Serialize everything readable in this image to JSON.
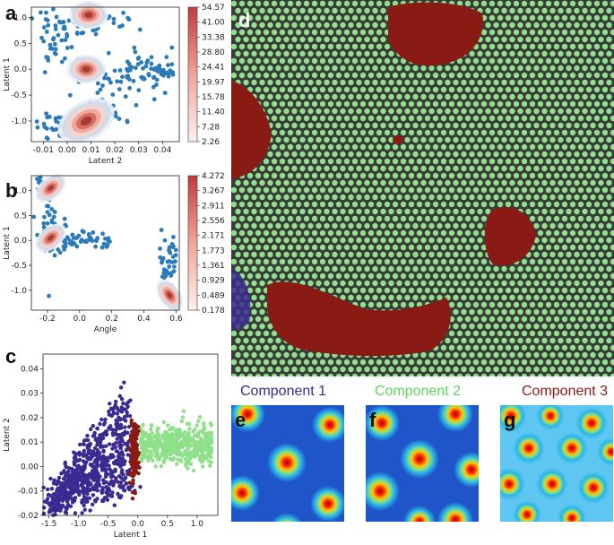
{
  "panels": {
    "a": {
      "label": "a",
      "xlabel": "Latent 2",
      "ylabel": "Latent 1",
      "xticks": [
        "-0.01",
        "0.00",
        "0.01",
        "0.02",
        "0.03",
        "0.04"
      ],
      "yticks": [
        "1.0",
        "0.5",
        "0.0",
        "-0.5",
        "-1.0"
      ],
      "colorbar_ticks": [
        "54.57",
        "41.00",
        "33.38",
        "28.80",
        "24.41",
        "19.97",
        "15.78",
        "11.40",
        "7.28",
        "2.26"
      ]
    },
    "b": {
      "label": "b",
      "xlabel": "Angle",
      "ylabel": "Latent 1",
      "xticks": [
        "-0.2",
        "0.0",
        "0.2",
        "0.4",
        "0.6"
      ],
      "yticks": [
        "1.0",
        "0.5",
        "0.0",
        "-0.5",
        "-1.0"
      ],
      "colorbar_ticks": [
        "4.272",
        "3.267",
        "2.911",
        "2.556",
        "2.171",
        "1.773",
        "1.361",
        "0.929",
        "0.489",
        "0.178"
      ]
    },
    "c": {
      "label": "c",
      "xlabel": "Latent 1",
      "ylabel": "Latent 2",
      "xticks": [
        "-1.5",
        "-1.0",
        "-0.5",
        "0.0",
        "0.5",
        "1.0"
      ],
      "yticks": [
        "0.04",
        "0.03",
        "0.02",
        "0.01",
        "0.00",
        "-0.01",
        "-0.02"
      ]
    },
    "d": {
      "label": "d"
    },
    "e": {
      "label": "e",
      "title": "Component 1"
    },
    "f": {
      "label": "f",
      "title": "Component 2"
    },
    "g": {
      "label": "g",
      "title": "Component 3"
    }
  },
  "colors": {
    "component1": "#3b2a8f",
    "component2": "#8fe08a",
    "component3": "#8a1a14",
    "scatter_blue": "#2b7bba",
    "kde_light": "#a9c6e0",
    "kde_red": "#b03030"
  },
  "chart_data": [
    {
      "type": "scatter",
      "panel": "a",
      "xlabel": "Latent 2",
      "ylabel": "Latent 1",
      "xlim": [
        -0.015,
        0.047
      ],
      "ylim": [
        -1.4,
        1.2
      ],
      "density_peaks": [
        {
          "x": 0.009,
          "y": 1.05
        },
        {
          "x": 0.008,
          "y": 0.0
        },
        {
          "x": 0.008,
          "y": -1.0
        }
      ],
      "colorbar_range": [
        2.26,
        54.57
      ]
    },
    {
      "type": "scatter",
      "panel": "b",
      "xlabel": "Angle",
      "ylabel": "Latent 1",
      "xlim": [
        -0.3,
        0.62
      ],
      "ylim": [
        -1.4,
        1.3
      ],
      "density_peaks": [
        {
          "x": -0.18,
          "y": 1.05
        },
        {
          "x": -0.18,
          "y": 0.05
        },
        {
          "x": 0.56,
          "y": -1.1
        }
      ],
      "colorbar_range": [
        0.178,
        4.272
      ]
    },
    {
      "type": "scatter",
      "panel": "c",
      "xlabel": "Latent 1",
      "ylabel": "Latent 2",
      "xlim": [
        -1.6,
        1.35
      ],
      "ylim": [
        -0.02,
        0.046
      ],
      "series": [
        {
          "name": "Component 1",
          "x_range": [
            -1.45,
            -0.1
          ],
          "y_range": [
            -0.015,
            0.045
          ]
        },
        {
          "name": "Component 3",
          "x_range": [
            -0.12,
            0.02
          ],
          "y_range": [
            -0.008,
            0.02
          ]
        },
        {
          "name": "Component 2",
          "x_range": [
            0.0,
            1.25
          ],
          "y_range": [
            0.0,
            0.02
          ]
        }
      ]
    }
  ]
}
